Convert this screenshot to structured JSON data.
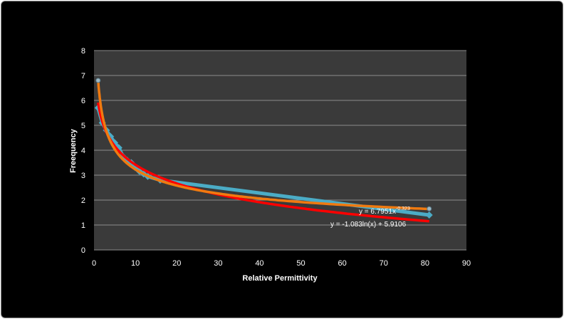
{
  "chart_data": {
    "type": "scatter",
    "xlabel": "Relative Permittivity",
    "ylabel": "Freequency",
    "xlim": [
      0,
      90
    ],
    "ylim": [
      0,
      8
    ],
    "xticks": [
      0,
      10,
      20,
      30,
      40,
      50,
      60,
      70,
      80,
      90
    ],
    "yticks": [
      0,
      1,
      2,
      3,
      4,
      5,
      6,
      7,
      8
    ],
    "grid": "horizontal",
    "colors": {
      "background": "#000000",
      "plot_area": "#3a3a3a",
      "gridline": "#8c8c8c",
      "data_series": "#4bacc6",
      "power_trend": "#f07a10",
      "log_trend": "#ff0000"
    },
    "series": [
      {
        "marker": "diamond",
        "points": [
          [
            1,
            5.7
          ],
          [
            2,
            5.1
          ],
          [
            3,
            4.8
          ],
          [
            4,
            4.55
          ],
          [
            5,
            4.3
          ],
          [
            6,
            4.1
          ],
          [
            7,
            3.75
          ],
          [
            8,
            3.6
          ],
          [
            9,
            3.5
          ],
          [
            10,
            3.3
          ],
          [
            11,
            3.15
          ],
          [
            12,
            3.05
          ],
          [
            13,
            2.95
          ],
          [
            16,
            2.8
          ],
          [
            81,
            1.4
          ]
        ]
      }
    ],
    "trendlines": [
      {
        "kind": "power",
        "a": 6.7951,
        "b": -0.323,
        "equation_base": "y = 6.7951x",
        "equation_exp": "-0.323"
      },
      {
        "kind": "log",
        "a": -1.083,
        "b": 5.9106,
        "equation": "y = -1.083ln(x) + 5.9106"
      }
    ],
    "extra_markers": [
      [
        1,
        6.8
      ],
      [
        81,
        1.65
      ]
    ]
  }
}
